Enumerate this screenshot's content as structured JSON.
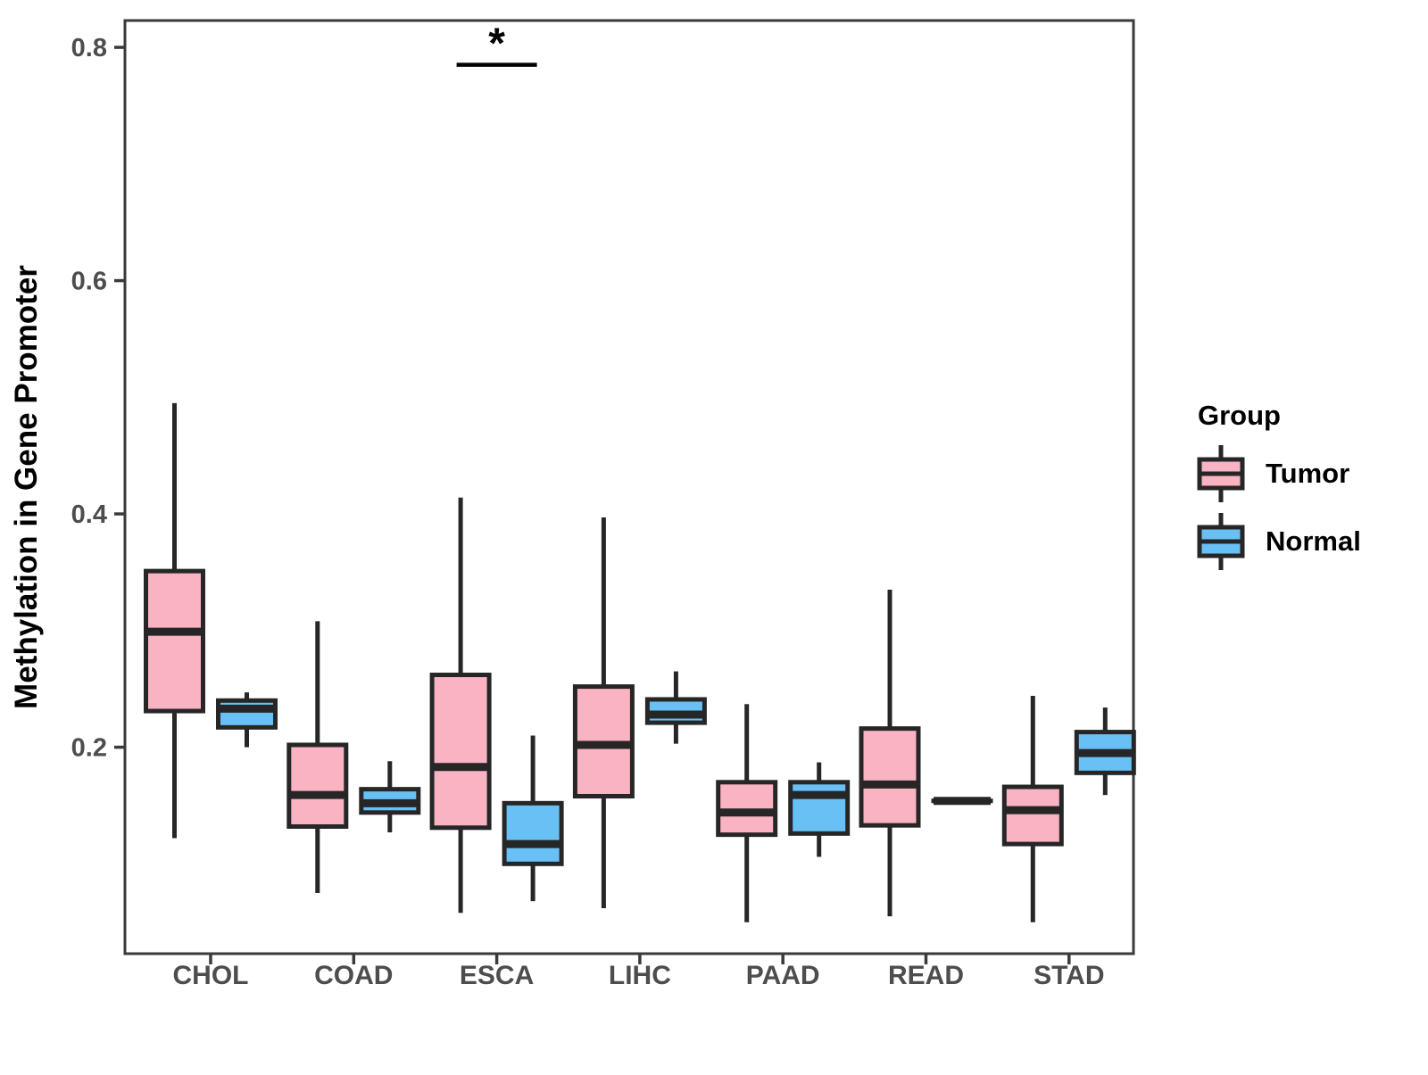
{
  "figure": {
    "background": "#ffffff"
  },
  "legend": {
    "title": "Group",
    "entries": [
      {
        "label": "Tumor",
        "color": "#F9B3C2"
      },
      {
        "label": "Normal",
        "color": "#69C0F5"
      }
    ]
  },
  "colors": {
    "box_stroke": "#262626",
    "panel_border": "#3a3a3a",
    "tick_label": "#4d4d4d",
    "axis_title": "#000000",
    "tumor_fill": "#F9B3C2",
    "normal_fill": "#69C0F5"
  },
  "chart_data": {
    "type": "boxplot",
    "title": "",
    "xlabel": "",
    "ylabel": "Methylation in Gene Promoter",
    "categories": [
      "CHOL",
      "COAD",
      "ESCA",
      "LIHC",
      "PAAD",
      "READ",
      "STAD"
    ],
    "yticks": [
      0.2,
      0.4,
      0.6,
      0.8
    ],
    "ytick_labels": [
      "0.2",
      "0.4",
      "0.6",
      "0.8"
    ],
    "ylim": [
      0.023,
      0.823
    ],
    "grid": false,
    "legend_position": "right",
    "annotation": {
      "category": "ESCA",
      "label": "*",
      "y_value": 0.785
    },
    "series": [
      {
        "name": "Tumor",
        "color": "#F9B3C2",
        "boxes": [
          {
            "category": "CHOL",
            "whisker_low": 0.122,
            "q1": 0.231,
            "median": 0.299,
            "q3": 0.351,
            "whisker_high": 0.495
          },
          {
            "category": "COAD",
            "whisker_low": 0.075,
            "q1": 0.132,
            "median": 0.159,
            "q3": 0.202,
            "whisker_high": 0.308
          },
          {
            "category": "ESCA",
            "whisker_low": 0.058,
            "q1": 0.131,
            "median": 0.183,
            "q3": 0.262,
            "whisker_high": 0.414
          },
          {
            "category": "LIHC",
            "whisker_low": 0.062,
            "q1": 0.158,
            "median": 0.202,
            "q3": 0.252,
            "whisker_high": 0.397
          },
          {
            "category": "PAAD",
            "whisker_low": 0.05,
            "q1": 0.125,
            "median": 0.144,
            "q3": 0.17,
            "whisker_high": 0.237
          },
          {
            "category": "READ",
            "whisker_low": 0.055,
            "q1": 0.133,
            "median": 0.168,
            "q3": 0.216,
            "whisker_high": 0.335
          },
          {
            "category": "STAD",
            "whisker_low": 0.05,
            "q1": 0.117,
            "median": 0.146,
            "q3": 0.166,
            "whisker_high": 0.244
          }
        ]
      },
      {
        "name": "Normal",
        "color": "#69C0F5",
        "boxes": [
          {
            "category": "CHOL",
            "whisker_low": 0.2,
            "q1": 0.217,
            "median": 0.233,
            "q3": 0.24,
            "whisker_high": 0.247
          },
          {
            "category": "COAD",
            "whisker_low": 0.127,
            "q1": 0.144,
            "median": 0.152,
            "q3": 0.164,
            "whisker_high": 0.188
          },
          {
            "category": "ESCA",
            "whisker_low": 0.068,
            "q1": 0.1,
            "median": 0.117,
            "q3": 0.152,
            "whisker_high": 0.21
          },
          {
            "category": "LIHC",
            "whisker_low": 0.203,
            "q1": 0.221,
            "median": 0.228,
            "q3": 0.241,
            "whisker_high": 0.265
          },
          {
            "category": "PAAD",
            "whisker_low": 0.106,
            "q1": 0.126,
            "median": 0.159,
            "q3": 0.17,
            "whisker_high": 0.187
          },
          {
            "category": "READ",
            "whisker_low": 0.154,
            "q1": 0.154,
            "median": 0.154,
            "q3": 0.154,
            "whisker_high": 0.154
          },
          {
            "category": "STAD",
            "whisker_low": 0.159,
            "q1": 0.178,
            "median": 0.195,
            "q3": 0.213,
            "whisker_high": 0.234
          }
        ]
      }
    ]
  }
}
